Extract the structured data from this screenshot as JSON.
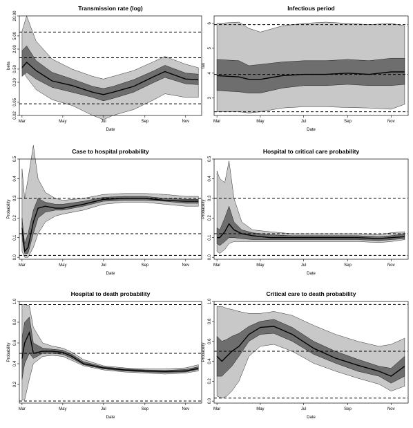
{
  "figure": {
    "xlabel": "Date",
    "x_ticks": [
      "Mar",
      "May",
      "Jul",
      "Sep",
      "Nov"
    ]
  },
  "colors": {
    "outer_band": "#c8c8c8",
    "inner_band": "#6e6e6e",
    "median": "#000000",
    "prior_lines": "#000000"
  },
  "chart_data": [
    {
      "type": "area",
      "title": "Transmission rate (log)",
      "xlabel": "Date",
      "ylabel": "beta",
      "log_y": true,
      "ylim": [
        0.02,
        20
      ],
      "yticks": [
        0.02,
        0.05,
        0.2,
        0.5,
        2.0,
        5.0,
        20.0
      ],
      "ytick_labels": [
        "0.02",
        "0.05",
        "0.20",
        "0.50",
        "2.00",
        "5.00",
        "20.00"
      ],
      "hlines": [
        0.045,
        1.1,
        6.5
      ],
      "x_dates": [
        "Mar 1",
        "Mar 8",
        "Mar 22",
        "Apr 15",
        "May 15",
        "Jun 15",
        "Jul 1",
        "Jul 15",
        "Aug 15",
        "Sep 15",
        "Oct 1",
        "Nov 1",
        "Nov 20"
      ],
      "series": [
        {
          "name": "outer_lower",
          "values": [
            0.5,
            0.28,
            0.12,
            0.06,
            0.04,
            0.02,
            0.015,
            0.02,
            0.03,
            0.06,
            0.09,
            0.07,
            0.07
          ]
        },
        {
          "name": "inner_lower",
          "values": [
            0.3,
            0.4,
            0.25,
            0.14,
            0.1,
            0.07,
            0.055,
            0.065,
            0.1,
            0.2,
            0.28,
            0.18,
            0.17
          ]
        },
        {
          "name": "median",
          "values": [
            0.55,
            0.8,
            0.45,
            0.22,
            0.16,
            0.1,
            0.085,
            0.1,
            0.15,
            0.3,
            0.42,
            0.25,
            0.24
          ]
        },
        {
          "name": "inner_upper",
          "values": [
            1.8,
            2.5,
            0.9,
            0.4,
            0.25,
            0.15,
            0.13,
            0.15,
            0.24,
            0.45,
            0.65,
            0.38,
            0.35
          ]
        },
        {
          "name": "outer_upper",
          "values": [
            7,
            20,
            3.5,
            1.0,
            0.5,
            0.3,
            0.25,
            0.3,
            0.45,
            0.85,
            1.2,
            0.7,
            0.55
          ]
        }
      ]
    },
    {
      "type": "area",
      "title": "Infectious period",
      "xlabel": "Date",
      "ylabel": "tau",
      "ylim": [
        2.3,
        6.3
      ],
      "yticks": [
        3,
        4,
        5,
        6
      ],
      "ytick_labels": [
        "3",
        "4",
        "5",
        "6"
      ],
      "hlines": [
        2.45,
        3.95,
        5.95
      ],
      "x_dates": [
        "Mar 1",
        "Apr 1",
        "Apr 15",
        "May 1",
        "Jun 1",
        "Jul 1",
        "Aug 1",
        "Sep 1",
        "Oct 1",
        "Nov 1",
        "Nov 20"
      ],
      "series": [
        {
          "name": "outer_lower",
          "values": [
            2.45,
            2.45,
            2.4,
            2.45,
            2.6,
            2.65,
            2.65,
            2.62,
            2.6,
            2.55,
            2.75
          ]
        },
        {
          "name": "inner_lower",
          "values": [
            3.3,
            3.25,
            3.2,
            3.2,
            3.4,
            3.5,
            3.5,
            3.55,
            3.5,
            3.5,
            3.55
          ]
        },
        {
          "name": "median",
          "values": [
            3.9,
            3.85,
            3.75,
            3.75,
            3.9,
            3.95,
            3.95,
            4.0,
            3.95,
            4.05,
            4.05
          ]
        },
        {
          "name": "inner_upper",
          "values": [
            4.55,
            4.5,
            4.3,
            4.35,
            4.45,
            4.5,
            4.5,
            4.55,
            4.5,
            4.6,
            4.6
          ]
        },
        {
          "name": "outer_upper",
          "values": [
            6.0,
            6.05,
            5.8,
            5.65,
            5.9,
            6.0,
            6.05,
            6.0,
            5.95,
            6.0,
            5.9
          ]
        }
      ]
    },
    {
      "type": "area",
      "title": "Case to hospital probability",
      "xlabel": "Date",
      "ylabel": "Probability",
      "ylim": [
        -0.01,
        0.5
      ],
      "yticks": [
        0.0,
        0.1,
        0.2,
        0.3,
        0.4,
        0.5
      ],
      "ytick_labels": [
        "0.0",
        "0.1",
        "0.2",
        "0.3",
        "0.4",
        "0.5"
      ],
      "hlines": [
        0.01,
        0.12,
        0.3
      ],
      "x_dates": [
        "Mar 1",
        "Mar 5",
        "Mar 10",
        "Mar 18",
        "Mar 25",
        "Apr 5",
        "Apr 20",
        "May 1",
        "Jun 1",
        "Jul 1",
        "Aug 1",
        "Sep 1",
        "Oct 1",
        "Nov 1",
        "Nov 20"
      ],
      "series": [
        {
          "name": "outer_lower",
          "values": [
            0.03,
            0.0,
            0.0,
            0.05,
            0.12,
            0.18,
            0.21,
            0.22,
            0.24,
            0.27,
            0.28,
            0.28,
            0.27,
            0.26,
            0.26
          ]
        },
        {
          "name": "inner_lower",
          "values": [
            0.1,
            0.02,
            0.02,
            0.12,
            0.2,
            0.23,
            0.24,
            0.24,
            0.26,
            0.285,
            0.29,
            0.29,
            0.285,
            0.275,
            0.275
          ]
        },
        {
          "name": "median",
          "values": [
            0.15,
            0.03,
            0.05,
            0.18,
            0.25,
            0.26,
            0.25,
            0.25,
            0.27,
            0.295,
            0.3,
            0.3,
            0.29,
            0.285,
            0.285
          ]
        },
        {
          "name": "inner_upper",
          "values": [
            0.2,
            0.07,
            0.12,
            0.24,
            0.3,
            0.28,
            0.27,
            0.27,
            0.285,
            0.305,
            0.31,
            0.31,
            0.3,
            0.295,
            0.295
          ]
        },
        {
          "name": "outer_upper",
          "values": [
            0.45,
            0.3,
            0.4,
            0.57,
            0.4,
            0.33,
            0.3,
            0.29,
            0.3,
            0.32,
            0.325,
            0.325,
            0.32,
            0.31,
            0.31
          ]
        }
      ]
    },
    {
      "type": "area",
      "title": "Hospital to critical care probability",
      "xlabel": "Date",
      "ylabel": "Probability",
      "ylim": [
        -0.01,
        0.5
      ],
      "yticks": [
        0.0,
        0.1,
        0.2,
        0.3,
        0.4,
        0.5
      ],
      "ytick_labels": [
        "0.0",
        "0.1",
        "0.2",
        "0.3",
        "0.4",
        "0.5"
      ],
      "hlines": [
        0.01,
        0.12,
        0.3
      ],
      "x_dates": [
        "Mar 1",
        "Mar 5",
        "Mar 12",
        "Mar 18",
        "Mar 25",
        "Apr 5",
        "Apr 20",
        "May 15",
        "Jun 15",
        "Jul 15",
        "Aug 15",
        "Sep 15",
        "Oct 15",
        "Nov 1",
        "Nov 20"
      ],
      "series": [
        {
          "name": "outer_lower",
          "values": [
            0.03,
            0.02,
            0.04,
            0.07,
            0.08,
            0.08,
            0.08,
            0.08,
            0.08,
            0.08,
            0.08,
            0.08,
            0.075,
            0.08,
            0.09
          ]
        },
        {
          "name": "inner_lower",
          "values": [
            0.07,
            0.06,
            0.08,
            0.1,
            0.1,
            0.095,
            0.09,
            0.09,
            0.09,
            0.09,
            0.09,
            0.09,
            0.085,
            0.09,
            0.095
          ]
        },
        {
          "name": "median",
          "values": [
            0.1,
            0.1,
            0.13,
            0.17,
            0.14,
            0.12,
            0.11,
            0.1,
            0.1,
            0.1,
            0.1,
            0.1,
            0.095,
            0.1,
            0.105
          ]
        },
        {
          "name": "inner_upper",
          "values": [
            0.15,
            0.14,
            0.2,
            0.26,
            0.18,
            0.14,
            0.125,
            0.115,
            0.11,
            0.11,
            0.11,
            0.11,
            0.105,
            0.11,
            0.12
          ]
        },
        {
          "name": "outer_upper",
          "values": [
            0.44,
            0.4,
            0.38,
            0.49,
            0.3,
            0.18,
            0.14,
            0.13,
            0.12,
            0.12,
            0.12,
            0.12,
            0.115,
            0.125,
            0.13
          ]
        }
      ]
    },
    {
      "type": "area",
      "title": "Hospital to death probability",
      "xlabel": "Date",
      "ylabel": "Probability",
      "ylim": [
        0.02,
        1.0
      ],
      "yticks": [
        0.2,
        0.4,
        0.6,
        0.8,
        1.0
      ],
      "ytick_labels": [
        "0.2",
        "0.4",
        "0.6",
        "0.8",
        "1.0"
      ],
      "hlines": [
        0.04,
        0.5,
        0.97
      ],
      "x_dates": [
        "Mar 1",
        "Mar 5",
        "Mar 12",
        "Mar 18",
        "Apr 1",
        "Apr 15",
        "May 1",
        "May 15",
        "Jun 1",
        "Jul 1",
        "Aug 1",
        "Sep 1",
        "Oct 1",
        "Nov 1",
        "Nov 20"
      ],
      "series": [
        {
          "name": "outer_lower",
          "values": [
            0.05,
            0.05,
            0.25,
            0.4,
            0.47,
            0.48,
            0.47,
            0.43,
            0.38,
            0.34,
            0.32,
            0.31,
            0.3,
            0.31,
            0.33
          ]
        },
        {
          "name": "inner_lower",
          "values": [
            0.25,
            0.4,
            0.5,
            0.45,
            0.5,
            0.5,
            0.49,
            0.45,
            0.39,
            0.35,
            0.33,
            0.32,
            0.315,
            0.32,
            0.345
          ]
        },
        {
          "name": "median",
          "values": [
            0.45,
            0.6,
            0.7,
            0.5,
            0.52,
            0.52,
            0.51,
            0.47,
            0.4,
            0.36,
            0.34,
            0.33,
            0.325,
            0.33,
            0.355
          ]
        },
        {
          "name": "inner_upper",
          "values": [
            0.65,
            0.8,
            0.85,
            0.6,
            0.55,
            0.54,
            0.53,
            0.49,
            0.42,
            0.37,
            0.35,
            0.34,
            0.335,
            0.345,
            0.37
          ]
        },
        {
          "name": "outer_upper",
          "values": [
            0.97,
            0.97,
            0.96,
            0.75,
            0.6,
            0.57,
            0.55,
            0.51,
            0.44,
            0.38,
            0.36,
            0.35,
            0.35,
            0.36,
            0.39
          ]
        }
      ]
    },
    {
      "type": "area",
      "title": "Critical care to death probability",
      "xlabel": "Date",
      "ylabel": "Probability",
      "ylim": [
        -0.02,
        1.0
      ],
      "yticks": [
        0.0,
        0.2,
        0.4,
        0.6,
        0.8,
        1.0
      ],
      "ytick_labels": [
        "0.0",
        "0.2",
        "0.4",
        "0.6",
        "0.8",
        "1.0"
      ],
      "hlines": [
        0.03,
        0.5,
        0.97
      ],
      "x_dates": [
        "Mar 1",
        "Mar 8",
        "Mar 15",
        "Mar 22",
        "Apr 1",
        "Apr 15",
        "May 1",
        "May 20",
        "Jun 15",
        "Jul 15",
        "Aug 15",
        "Sep 15",
        "Oct 15",
        "Nov 1",
        "Nov 20"
      ],
      "series": [
        {
          "name": "outer_lower",
          "values": [
            0.05,
            0.03,
            0.05,
            0.1,
            0.2,
            0.45,
            0.55,
            0.57,
            0.5,
            0.38,
            0.3,
            0.23,
            0.17,
            0.1,
            0.15
          ]
        },
        {
          "name": "inner_lower",
          "values": [
            0.25,
            0.25,
            0.3,
            0.35,
            0.45,
            0.6,
            0.67,
            0.68,
            0.6,
            0.47,
            0.38,
            0.3,
            0.25,
            0.18,
            0.25
          ]
        },
        {
          "name": "median",
          "values": [
            0.45,
            0.4,
            0.45,
            0.5,
            0.55,
            0.67,
            0.74,
            0.75,
            0.67,
            0.53,
            0.43,
            0.36,
            0.3,
            0.25,
            0.35
          ]
        },
        {
          "name": "inner_upper",
          "values": [
            0.65,
            0.6,
            0.62,
            0.65,
            0.68,
            0.75,
            0.8,
            0.82,
            0.74,
            0.6,
            0.5,
            0.42,
            0.35,
            0.33,
            0.45
          ]
        },
        {
          "name": "outer_upper",
          "values": [
            0.95,
            0.95,
            0.93,
            0.92,
            0.9,
            0.88,
            0.88,
            0.9,
            0.86,
            0.76,
            0.67,
            0.6,
            0.55,
            0.57,
            0.63
          ]
        }
      ]
    }
  ]
}
